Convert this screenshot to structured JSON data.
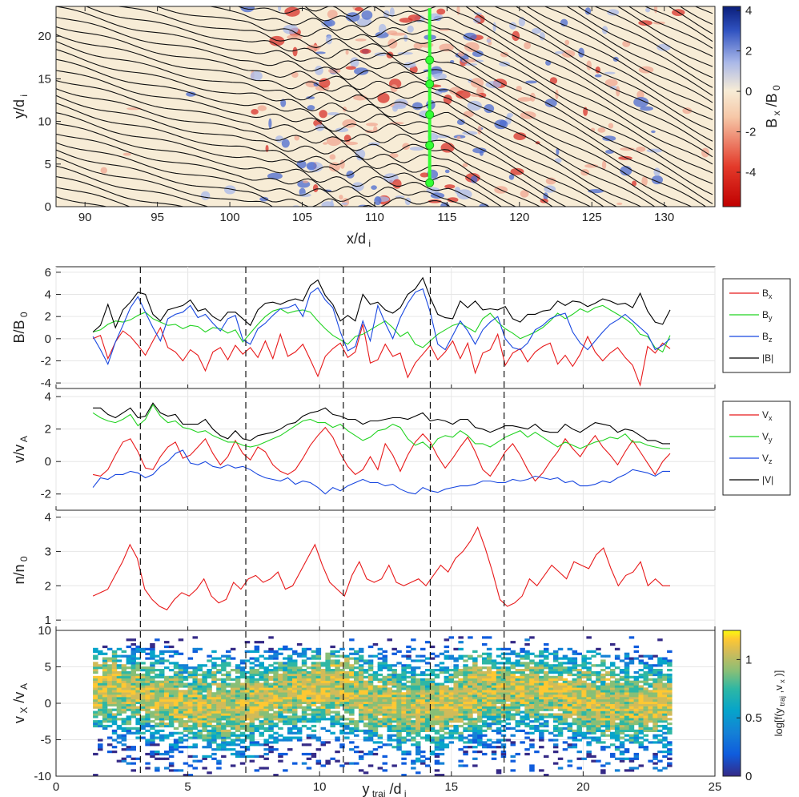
{
  "colors": {
    "Bx": "#e8191a",
    "By": "#21d321",
    "Bz": "#1847e0",
    "B": "#000000",
    "Vx": "#e8191a",
    "Vy": "#21d321",
    "Vz": "#1847e0",
    "V": "#000000",
    "n": "#e8191a",
    "trajectory": "#33ff33"
  },
  "chart_data": [
    {
      "type": "heatmap",
      "panel": "top",
      "xlabel": "x/d i",
      "ylabel": "y/d i",
      "xlim": [
        88,
        133.5
      ],
      "ylim": [
        0,
        23.5
      ],
      "xticks": [
        90,
        95,
        100,
        105,
        110,
        115,
        120,
        125,
        130
      ],
      "yticks": [
        0,
        5,
        10,
        15,
        20
      ],
      "colorbar": {
        "label": "B x /B 0",
        "range": [
          -5.7,
          4.2
        ],
        "ticks": [
          4,
          2,
          0,
          -2,
          -4
        ],
        "colormap": "red-white-blue"
      },
      "trajectory": {
        "x": [
          113.8,
          113.8
        ],
        "y": [
          2.8,
          23.3
        ],
        "markers_y": [
          2.8,
          7.2,
          10.8,
          14.4,
          17.2
        ]
      }
    },
    {
      "type": "line",
      "panel": "B",
      "ylabel": "B/B 0",
      "ylim": [
        -4.5,
        6.5
      ],
      "yticks": [
        -4,
        -2,
        0,
        2,
        4,
        6
      ],
      "series": [
        {
          "name": "B",
          "sub": "x",
          "values": [
            0.0,
            0.3,
            -1.8,
            -0.3,
            0.7,
            0.2,
            -0.6,
            -1.5,
            -0.2,
            1.0,
            -0.8,
            -1.2,
            -2.0,
            -1.0,
            -1.5,
            -2.9,
            -1.2,
            -0.8,
            -1.9,
            -0.6,
            -1.4,
            -0.8,
            -1.7,
            -0.2,
            -1.8,
            0.4,
            -1.6,
            -1.2,
            -0.5,
            -1.9,
            -3.4,
            -1.6,
            -0.9,
            -0.4,
            -1.7,
            -1.2,
            1.3,
            -2.2,
            -1.9,
            -0.5,
            -1.6,
            -1.3,
            -3.5,
            -2.2,
            -1.4,
            -0.6,
            -1.9,
            -1.2,
            -0.2,
            -1.8,
            -0.4,
            -3.1,
            -1.3,
            -1.0,
            0.4,
            -2.4,
            -1.3,
            -0.9,
            -2.1,
            -1.2,
            -0.7,
            -0.4,
            -2.3,
            -1.5,
            -2.5,
            -1.4,
            0.2,
            -1.2,
            -2.0,
            -1.3,
            -0.8,
            -1.7,
            -2.4,
            -4.2,
            -0.7,
            -1.3,
            -0.4,
            -0.9
          ]
        },
        {
          "name": "B",
          "sub": "y",
          "values": [
            0.6,
            0.8,
            1.3,
            1.6,
            1.5,
            1.7,
            2.1,
            2.4,
            1.8,
            1.5,
            1.2,
            1.3,
            0.9,
            1.2,
            1.1,
            0.6,
            1.0,
            0.9,
            0.5,
            0.8,
            -0.3,
            0.5,
            1.3,
            2.0,
            2.5,
            2.7,
            2.3,
            2.5,
            2.6,
            2.4,
            1.6,
            0.9,
            0.3,
            -0.1,
            -0.5,
            0.2,
            0.4,
            0.8,
            1.2,
            1.6,
            1.0,
            0.2,
            0.6,
            -0.5,
            -0.8,
            -0.2,
            0.4,
            0.8,
            1.2,
            1.4,
            1.0,
            0.6,
            1.8,
            2.3,
            1.5,
            0.9,
            0.5,
            0.0,
            0.3,
            0.6,
            1.0,
            1.6,
            2.3,
            1.8,
            2.2,
            2.7,
            2.4,
            2.8,
            3.0,
            2.6,
            2.2,
            1.8,
            1.3,
            0.4,
            0.2,
            -0.8,
            -1.2,
            0.3
          ]
        },
        {
          "name": "B",
          "sub": "z",
          "values": [
            0.2,
            -1.0,
            -2.3,
            -0.3,
            1.2,
            2.8,
            3.8,
            2.4,
            1.0,
            -0.2,
            1.8,
            2.2,
            2.4,
            3.0,
            1.9,
            2.2,
            1.4,
            0.7,
            1.8,
            2.1,
            -0.1,
            -0.5,
            0.9,
            1.4,
            2.1,
            2.7,
            2.8,
            3.1,
            2.0,
            4.1,
            4.6,
            3.5,
            2.8,
            0.6,
            -1.1,
            -0.7,
            1.6,
            -0.2,
            3.0,
            1.4,
            0.0,
            1.9,
            3.2,
            4.2,
            4.5,
            2.4,
            -0.5,
            -1.0,
            0.3,
            1.6,
            0.7,
            -0.5,
            0.8,
            1.5,
            2.0,
            0.0,
            -0.8,
            -1.0,
            -0.4,
            0.8,
            1.2,
            1.8,
            2.1,
            2.3,
            0.6,
            -0.4,
            -1.0,
            -0.2,
            0.6,
            1.3,
            1.7,
            2.2,
            1.6,
            1.0,
            0.4,
            -1.0,
            -0.6,
            0.0
          ]
        },
        {
          "name": "|B|",
          "sub": "",
          "values": [
            0.6,
            1.2,
            3.1,
            1.0,
            2.6,
            3.3,
            4.2,
            4.0,
            2.2,
            1.6,
            2.6,
            2.8,
            3.0,
            3.5,
            2.5,
            2.7,
            2.0,
            1.6,
            2.4,
            2.4,
            1.8,
            1.2,
            2.6,
            3.2,
            3.3,
            3.1,
            3.4,
            3.6,
            3.4,
            4.8,
            5.3,
            3.9,
            3.1,
            1.6,
            2.1,
            1.6,
            4.0,
            3.1,
            3.3,
            2.6,
            2.3,
            2.8,
            4.0,
            4.5,
            5.5,
            3.7,
            2.2,
            1.9,
            1.8,
            3.4,
            2.8,
            3.4,
            2.6,
            2.7,
            2.6,
            2.9,
            1.8,
            1.5,
            2.2,
            2.2,
            2.5,
            2.6,
            3.4,
            3.0,
            3.4,
            3.3,
            2.9,
            3.2,
            3.6,
            3.4,
            3.1,
            3.2,
            2.8,
            4.1,
            2.5,
            1.5,
            1.3,
            2.6
          ]
        }
      ]
    },
    {
      "type": "line",
      "panel": "V",
      "ylabel": "v/v A",
      "ylim": [
        -3,
        4.5
      ],
      "yticks": [
        -2,
        0,
        2,
        4
      ],
      "series": [
        {
          "name": "V",
          "sub": "x",
          "values": [
            -0.8,
            -0.9,
            -0.5,
            0.4,
            1.2,
            1.4,
            0.6,
            -0.4,
            -0.5,
            0.3,
            0.9,
            1.2,
            0.2,
            0.4,
            0.9,
            1.4,
            0.5,
            -0.2,
            0.3,
            1.3,
            0.5,
            0.1,
            0.9,
            0.6,
            -0.2,
            -0.6,
            -0.8,
            -0.5,
            0.2,
            1.0,
            1.6,
            2.1,
            1.5,
            0.5,
            -0.3,
            -0.8,
            -0.5,
            0.3,
            -0.5,
            1.1,
            0.4,
            -0.6,
            0.4,
            1.2,
            1.7,
            1.2,
            0.3,
            -0.4,
            0.2,
            0.9,
            1.5,
            0.6,
            -0.5,
            -0.9,
            -0.2,
            0.6,
            1.1,
            0.4,
            -0.5,
            -1.2,
            -0.7,
            0.0,
            0.6,
            1.4,
            0.8,
            0.3,
            1.0,
            1.6,
            0.9,
            0.4,
            -0.2,
            0.6,
            1.3,
            0.6,
            -0.1,
            -0.8,
            0.0,
            0.5
          ]
        },
        {
          "name": "V",
          "sub": "y",
          "values": [
            3.0,
            2.7,
            2.5,
            2.4,
            2.6,
            2.9,
            2.2,
            2.6,
            3.5,
            2.8,
            2.4,
            2.5,
            2.1,
            2.0,
            1.8,
            1.9,
            1.6,
            1.4,
            1.2,
            1.2,
            1.0,
            0.9,
            1.0,
            1.2,
            1.4,
            1.6,
            1.9,
            2.2,
            2.5,
            2.6,
            2.4,
            2.4,
            2.1,
            2.3,
            1.9,
            1.6,
            1.3,
            1.5,
            1.9,
            2.0,
            2.3,
            2.1,
            1.4,
            1.0,
            1.2,
            0.8,
            1.4,
            1.6,
            1.5,
            1.9,
            1.6,
            1.1,
            1.1,
            0.9,
            1.2,
            1.5,
            1.7,
            1.9,
            1.5,
            1.8,
            1.5,
            1.2,
            0.9,
            1.2,
            1.0,
            0.8,
            1.0,
            1.2,
            1.3,
            1.5,
            1.4,
            1.7,
            1.2,
            1.2,
            1.0,
            0.9,
            0.8,
            0.8
          ]
        },
        {
          "name": "V",
          "sub": "z",
          "values": [
            -1.6,
            -1.0,
            -1.1,
            -0.8,
            -0.8,
            -0.6,
            -0.7,
            -1.0,
            -0.8,
            -0.3,
            0.0,
            0.5,
            0.7,
            -0.1,
            -0.2,
            0.0,
            -0.3,
            -0.4,
            -0.2,
            -0.4,
            -0.3,
            -0.5,
            -0.8,
            -1.0,
            -1.1,
            -1.2,
            -1.0,
            -1.4,
            -1.2,
            -1.3,
            -1.6,
            -2.0,
            -1.6,
            -1.8,
            -1.5,
            -1.3,
            -1.1,
            -1.3,
            -1.3,
            -1.5,
            -1.4,
            -1.7,
            -1.9,
            -2.0,
            -1.6,
            -1.8,
            -1.9,
            -1.7,
            -1.6,
            -1.5,
            -1.5,
            -1.4,
            -1.2,
            -1.2,
            -1.3,
            -1.3,
            -1.1,
            -1.2,
            -1.1,
            -0.9,
            -1.0,
            -1.1,
            -1.0,
            -1.3,
            -1.2,
            -1.5,
            -1.5,
            -1.4,
            -1.2,
            -1.3,
            -1.0,
            -0.8,
            -0.5,
            -0.6,
            -0.7,
            -0.9,
            -0.6,
            -0.6
          ]
        },
        {
          "name": "|V|",
          "sub": "",
          "values": [
            3.3,
            3.3,
            2.9,
            2.7,
            3.0,
            3.3,
            2.7,
            2.8,
            3.6,
            3.0,
            2.8,
            2.9,
            2.3,
            2.3,
            2.3,
            2.6,
            2.0,
            1.6,
            1.4,
            1.9,
            1.4,
            1.3,
            1.6,
            1.7,
            1.8,
            2.0,
            2.3,
            2.4,
            2.8,
            3.0,
            3.1,
            3.3,
            2.9,
            2.8,
            2.6,
            2.6,
            2.3,
            2.5,
            2.5,
            2.6,
            2.7,
            2.7,
            2.6,
            2.8,
            3.0,
            2.5,
            2.6,
            2.5,
            2.3,
            2.6,
            2.6,
            2.1,
            2.0,
            1.8,
            2.0,
            2.2,
            2.2,
            2.1,
            2.0,
            2.3,
            1.9,
            1.8,
            1.8,
            2.3,
            2.0,
            1.8,
            2.1,
            2.4,
            2.3,
            2.2,
            1.8,
            2.0,
            1.9,
            1.6,
            1.3,
            1.3,
            1.1,
            1.1
          ]
        }
      ]
    },
    {
      "type": "line",
      "panel": "n",
      "ylabel": "n/n 0",
      "ylim": [
        0.7,
        4.2
      ],
      "yticks": [
        1,
        2,
        3,
        4
      ],
      "series": [
        {
          "name": "n",
          "values": [
            1.7,
            1.8,
            1.9,
            2.3,
            2.7,
            3.2,
            2.8,
            1.9,
            1.6,
            1.4,
            1.3,
            1.6,
            1.8,
            1.7,
            1.9,
            2.2,
            1.7,
            1.5,
            1.6,
            2.1,
            1.9,
            2.2,
            2.3,
            2.1,
            2.2,
            2.4,
            1.9,
            2.0,
            2.4,
            2.8,
            3.2,
            2.6,
            2.1,
            1.9,
            1.7,
            2.3,
            2.7,
            2.2,
            2.1,
            2.2,
            2.6,
            2.1,
            2.0,
            2.1,
            2.2,
            2.0,
            2.3,
            2.6,
            2.4,
            2.8,
            3.0,
            3.3,
            3.7,
            3.1,
            2.4,
            1.6,
            1.4,
            1.5,
            1.7,
            2.2,
            2.0,
            2.3,
            2.6,
            2.4,
            2.2,
            2.7,
            2.6,
            2.5,
            2.9,
            3.1,
            2.5,
            2.0,
            2.3,
            2.4,
            2.7,
            2.0,
            2.2,
            2.0,
            2.0
          ]
        }
      ]
    },
    {
      "type": "heatmap",
      "panel": "vx",
      "xlabel": "y traj /d i",
      "ylabel": "v X /v A",
      "xlim": [
        0,
        25
      ],
      "ylim": [
        -10,
        10
      ],
      "xticks": [
        0,
        5,
        10,
        15,
        20,
        25
      ],
      "yticks": [
        -10,
        -5,
        0,
        5,
        10
      ],
      "colorbar": {
        "label": "log[f(y traj ,v x )]",
        "range": [
          0,
          1.25
        ],
        "ticks": [
          0,
          0.5,
          1
        ],
        "colormap": "parula"
      }
    }
  ],
  "shared": {
    "x_lines": {
      "xlim": [
        0,
        25
      ],
      "x_start": 1.4,
      "x_end": 23.3
    },
    "dashed_lines_x": [
      3.2,
      7.2,
      10.9,
      14.2,
      17.0
    ]
  },
  "legend_B": [
    {
      "base": "B",
      "sub": "x",
      "key": "Bx"
    },
    {
      "base": "B",
      "sub": "y",
      "key": "By"
    },
    {
      "base": "B",
      "sub": "z",
      "key": "Bz"
    },
    {
      "base": "|B|",
      "sub": "",
      "key": "B"
    }
  ],
  "legend_V": [
    {
      "base": "V",
      "sub": "x",
      "key": "Vx"
    },
    {
      "base": "V",
      "sub": "y",
      "key": "Vy"
    },
    {
      "base": "V",
      "sub": "z",
      "key": "Vz"
    },
    {
      "base": "|V|",
      "sub": "",
      "key": "V"
    }
  ]
}
